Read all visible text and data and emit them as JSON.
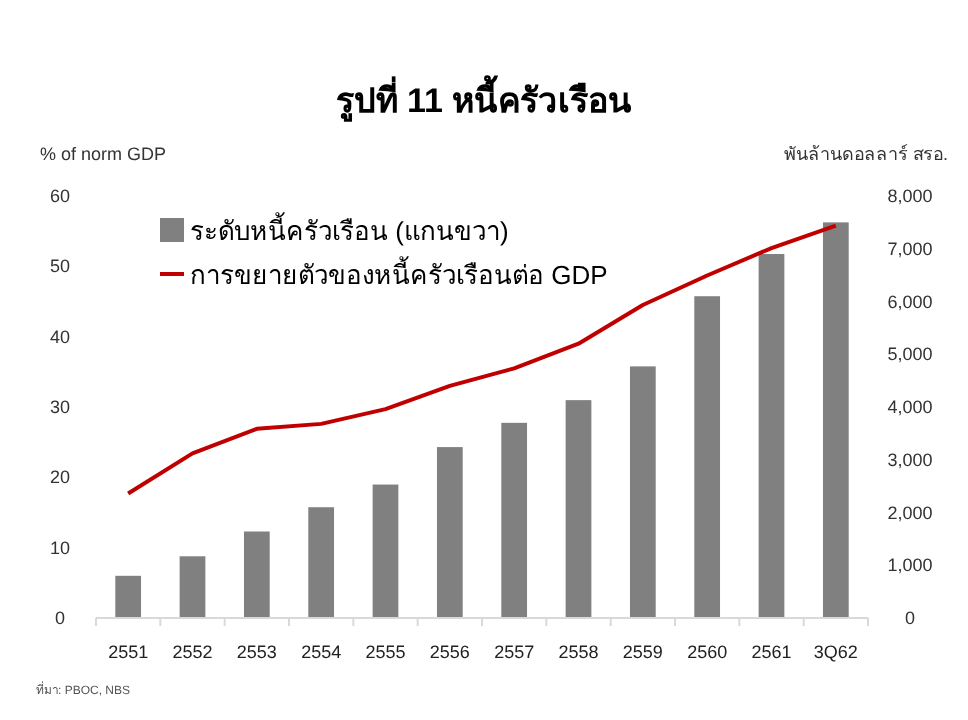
{
  "chart_data": {
    "type": "bar",
    "title": "รูปที่ 11 หนี้ครัวเรือน",
    "ylabel": "% of norm GDP",
    "y2label": "พันล้านดอลลาร์ สรอ.",
    "categories": [
      "2551",
      "2552",
      "2553",
      "2554",
      "2555",
      "2556",
      "2557",
      "2558",
      "2559",
      "2560",
      "2561",
      "3Q62"
    ],
    "series": [
      {
        "name": "ระดับหนี้ครัวเรือน (แกนขวา)",
        "axis": "y2",
        "color": "#808080",
        "values": [
          800,
          1170,
          1640,
          2100,
          2530,
          3240,
          3700,
          4130,
          4770,
          6100,
          6900,
          7500
        ]
      },
      {
        "name": "การขยายตัวของหนี้ครัวเรือนต่อ GDP",
        "type": "line",
        "color": "#c00000",
        "values": [
          17.7,
          23.4,
          26.9,
          27.6,
          29.7,
          33.0,
          35.5,
          39.0,
          44.5,
          48.7,
          52.6,
          55.8
        ]
      }
    ],
    "ylim": [
      0,
      60
    ],
    "yticks": [
      0,
      10,
      20,
      30,
      40,
      50,
      60
    ],
    "y2lim": [
      0,
      8000
    ],
    "y2ticks": [
      {
        "value": 0,
        "label": "0"
      },
      {
        "value": 1000,
        "label": "1,000"
      },
      {
        "value": 2000,
        "label": "2,000"
      },
      {
        "value": 3000,
        "label": "3,000"
      },
      {
        "value": 4000,
        "label": "4,000"
      },
      {
        "value": 5000,
        "label": "5,000"
      },
      {
        "value": 6000,
        "label": "6,000"
      },
      {
        "value": 7000,
        "label": "7,000"
      },
      {
        "value": 8000,
        "label": "8,000"
      }
    ],
    "legend": "top left",
    "grid": false,
    "annotations": [
      "ที่มา: PBOC, NBS"
    ]
  }
}
